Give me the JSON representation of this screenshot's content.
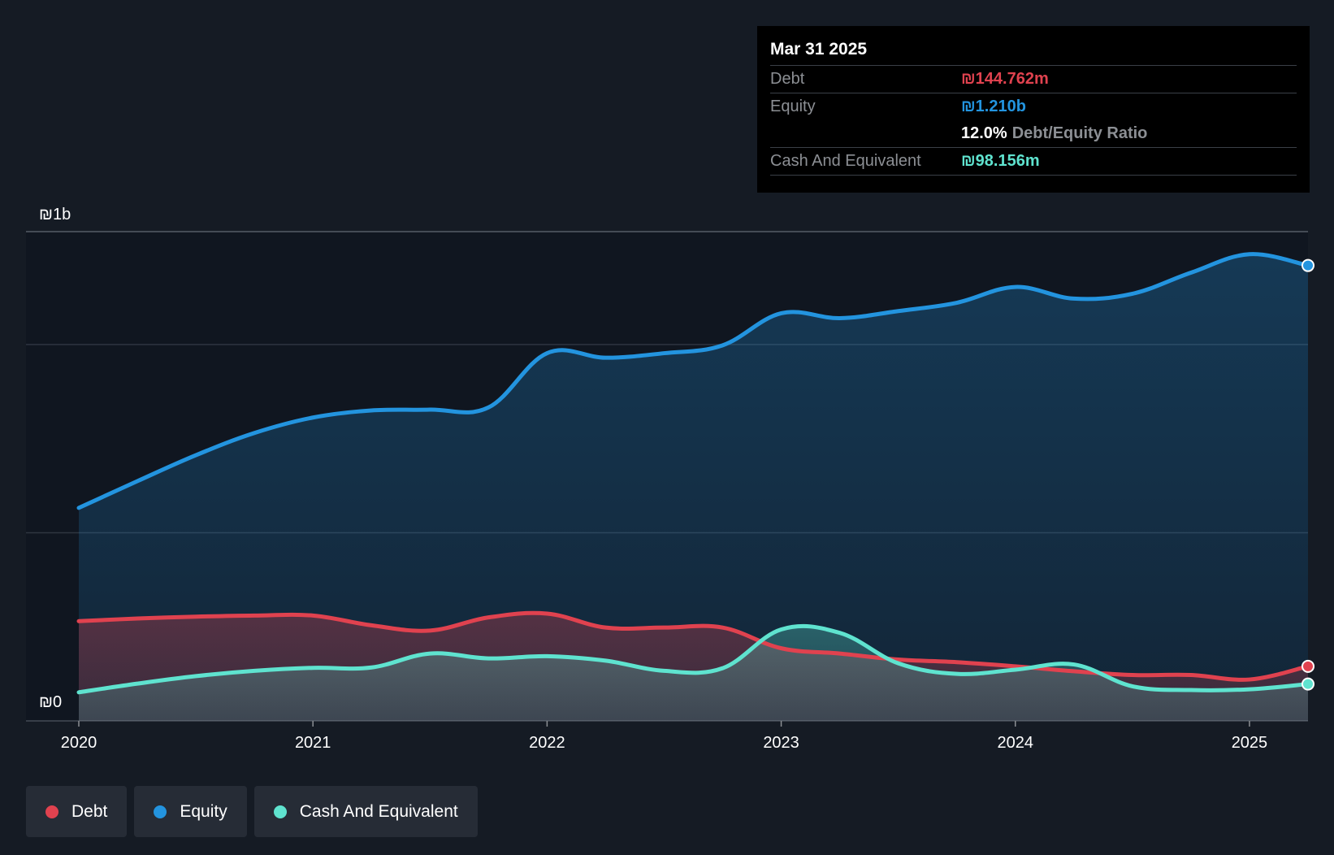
{
  "colors": {
    "debt": "#e0424f",
    "equity": "#2394df",
    "cash": "#5fe3cf",
    "grid": "#2e3540",
    "background": "#151b24"
  },
  "tooltip": {
    "date": "Mar 31 2025",
    "debt_label": "Debt",
    "debt_value": "₪144.762m",
    "equity_label": "Equity",
    "equity_value": "₪1.210b",
    "ratio_value": "12.0%",
    "ratio_label": "Debt/Equity Ratio",
    "cash_label": "Cash And Equivalent",
    "cash_value": "₪98.156m"
  },
  "legend": {
    "debt": "Debt",
    "equity": "Equity",
    "cash": "Cash And Equivalent"
  },
  "chart_data": {
    "type": "area",
    "title": "",
    "xlabel": "",
    "ylabel": "",
    "y_top_label": "₪1b",
    "y_bottom_label": "₪0",
    "ylim": [
      0,
      1300
    ],
    "xlim": [
      2020,
      2025.25
    ],
    "x_ticks": [
      2020,
      2021,
      2022,
      2023,
      2024,
      2025
    ],
    "x_tick_labels": [
      "2020",
      "2021",
      "2022",
      "2023",
      "2024",
      "2025"
    ],
    "y_gridlines": [
      0,
      500,
      1000,
      1300
    ],
    "legend_position": "bottom-left",
    "series": [
      {
        "name": "Equity",
        "key": "equity",
        "x": [
          2020,
          2020.25,
          2020.5,
          2020.75,
          2021,
          2021.25,
          2021.5,
          2021.75,
          2022,
          2022.25,
          2022.5,
          2022.75,
          2023,
          2023.25,
          2023.5,
          2023.75,
          2024,
          2024.25,
          2024.5,
          2024.75,
          2025,
          2025.25
        ],
        "values": [
          566,
          637,
          706,
          765,
          806,
          825,
          827,
          833,
          977,
          965,
          977,
          998,
          1083,
          1070,
          1089,
          1111,
          1153,
          1122,
          1135,
          1191,
          1240,
          1210
        ]
      },
      {
        "name": "Debt",
        "key": "debt",
        "x": [
          2020,
          2020.25,
          2020.5,
          2020.75,
          2021,
          2021.25,
          2021.5,
          2021.75,
          2022,
          2022.25,
          2022.5,
          2022.75,
          2023,
          2023.25,
          2023.5,
          2023.75,
          2024,
          2024.25,
          2024.5,
          2024.75,
          2025,
          2025.25
        ],
        "values": [
          265,
          272,
          277,
          280,
          280,
          254,
          240,
          275,
          285,
          248,
          248,
          248,
          193,
          179,
          163,
          156,
          145,
          132,
          122,
          122,
          110,
          145
        ]
      },
      {
        "name": "Cash And Equivalent",
        "key": "cash",
        "x": [
          2020,
          2020.25,
          2020.5,
          2020.75,
          2021,
          2021.25,
          2021.5,
          2021.75,
          2022,
          2022.25,
          2022.5,
          2022.75,
          2023,
          2023.25,
          2023.5,
          2023.75,
          2024,
          2024.25,
          2024.5,
          2024.75,
          2025,
          2025.25
        ],
        "values": [
          76,
          99,
          119,
          133,
          141,
          142,
          179,
          166,
          172,
          160,
          133,
          140,
          243,
          234,
          153,
          125,
          136,
          150,
          92,
          82,
          84,
          98
        ]
      }
    ]
  }
}
